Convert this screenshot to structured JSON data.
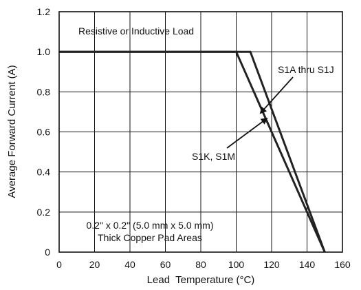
{
  "chart_data": {
    "type": "line",
    "xlabel": "Lead  Temperature (°C)",
    "ylabel": "Average Forward Current (A)",
    "xlim": [
      0,
      160
    ],
    "ylim": [
      0,
      1.2
    ],
    "x_ticks": [
      "0",
      "20",
      "40",
      "60",
      "80",
      "100",
      "120",
      "140",
      "160"
    ],
    "y_ticks": [
      "0",
      "0.2",
      "0.4",
      "0.6",
      "0.8",
      "1.0",
      "1.2"
    ],
    "grid": true,
    "line_color": "#222222",
    "series": [
      {
        "name": "S1A thru S1J",
        "points": [
          [
            0,
            1.0
          ],
          [
            108,
            1.0
          ],
          [
            150,
            0
          ]
        ]
      },
      {
        "name": "S1K, S1M",
        "points": [
          [
            0,
            1.0
          ],
          [
            100,
            1.0
          ],
          [
            150,
            0
          ]
        ]
      }
    ],
    "annotations": {
      "load_note": "Resistive or Inductive Load",
      "pad_line1": "0.2\" x 0.2\" (5.0 mm x 5.0 mm)",
      "pad_line2": "Thick Copper Pad Areas"
    }
  }
}
